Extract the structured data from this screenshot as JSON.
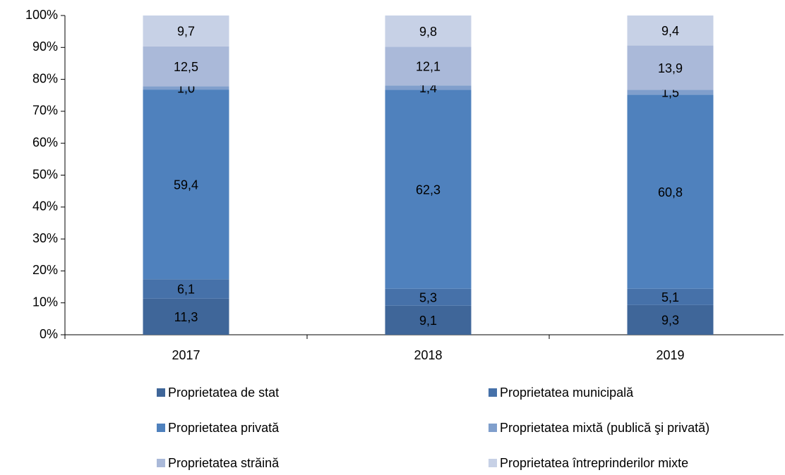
{
  "chart_data": {
    "type": "stacked_bar",
    "categories": [
      "2017",
      "2018",
      "2019"
    ],
    "series": [
      {
        "name": "Proprietatea de stat",
        "color": "#3f6699",
        "values": [
          11.3,
          9.1,
          9.3
        ],
        "value_labels": [
          "11,3",
          "9,1",
          "9,3"
        ]
      },
      {
        "name": "Proprietatea municipală",
        "color": "#4671a9",
        "values": [
          6.1,
          5.3,
          5.1
        ],
        "value_labels": [
          "6,1",
          "5,3",
          "5,1"
        ]
      },
      {
        "name": "Proprietatea privată",
        "color": "#4f81bd",
        "values": [
          59.4,
          62.3,
          60.8
        ],
        "value_labels": [
          "59,4",
          "62,3",
          "60,8"
        ]
      },
      {
        "name": "Proprietatea mixtă (publică şi privată)",
        "color": "#809fcc",
        "values": [
          1.0,
          1.4,
          1.5
        ],
        "value_labels": [
          "1,0",
          "1,4",
          "1,5"
        ]
      },
      {
        "name": "Proprietatea străină",
        "color": "#aab9d9",
        "values": [
          12.5,
          12.1,
          13.9
        ],
        "value_labels": [
          "12,5",
          "12,1",
          "13,9"
        ]
      },
      {
        "name": "Proprietatea întreprinderilor mixte",
        "color": "#c7d1e6",
        "values": [
          9.7,
          9.8,
          9.4
        ],
        "value_labels": [
          "9,7",
          "9,8",
          "9,4"
        ]
      }
    ],
    "ylim": [
      0,
      100
    ],
    "yticks": [
      {
        "value": 0,
        "label": "0%"
      },
      {
        "value": 10,
        "label": "10%"
      },
      {
        "value": 20,
        "label": "20%"
      },
      {
        "value": 30,
        "label": "30%"
      },
      {
        "value": 40,
        "label": "40%"
      },
      {
        "value": 50,
        "label": "50%"
      },
      {
        "value": 60,
        "label": "60%"
      },
      {
        "value": 70,
        "label": "70%"
      },
      {
        "value": 80,
        "label": "80%"
      },
      {
        "value": 90,
        "label": "90%"
      },
      {
        "value": 100,
        "label": "100%"
      }
    ],
    "grid": false,
    "legend": "bottom"
  }
}
